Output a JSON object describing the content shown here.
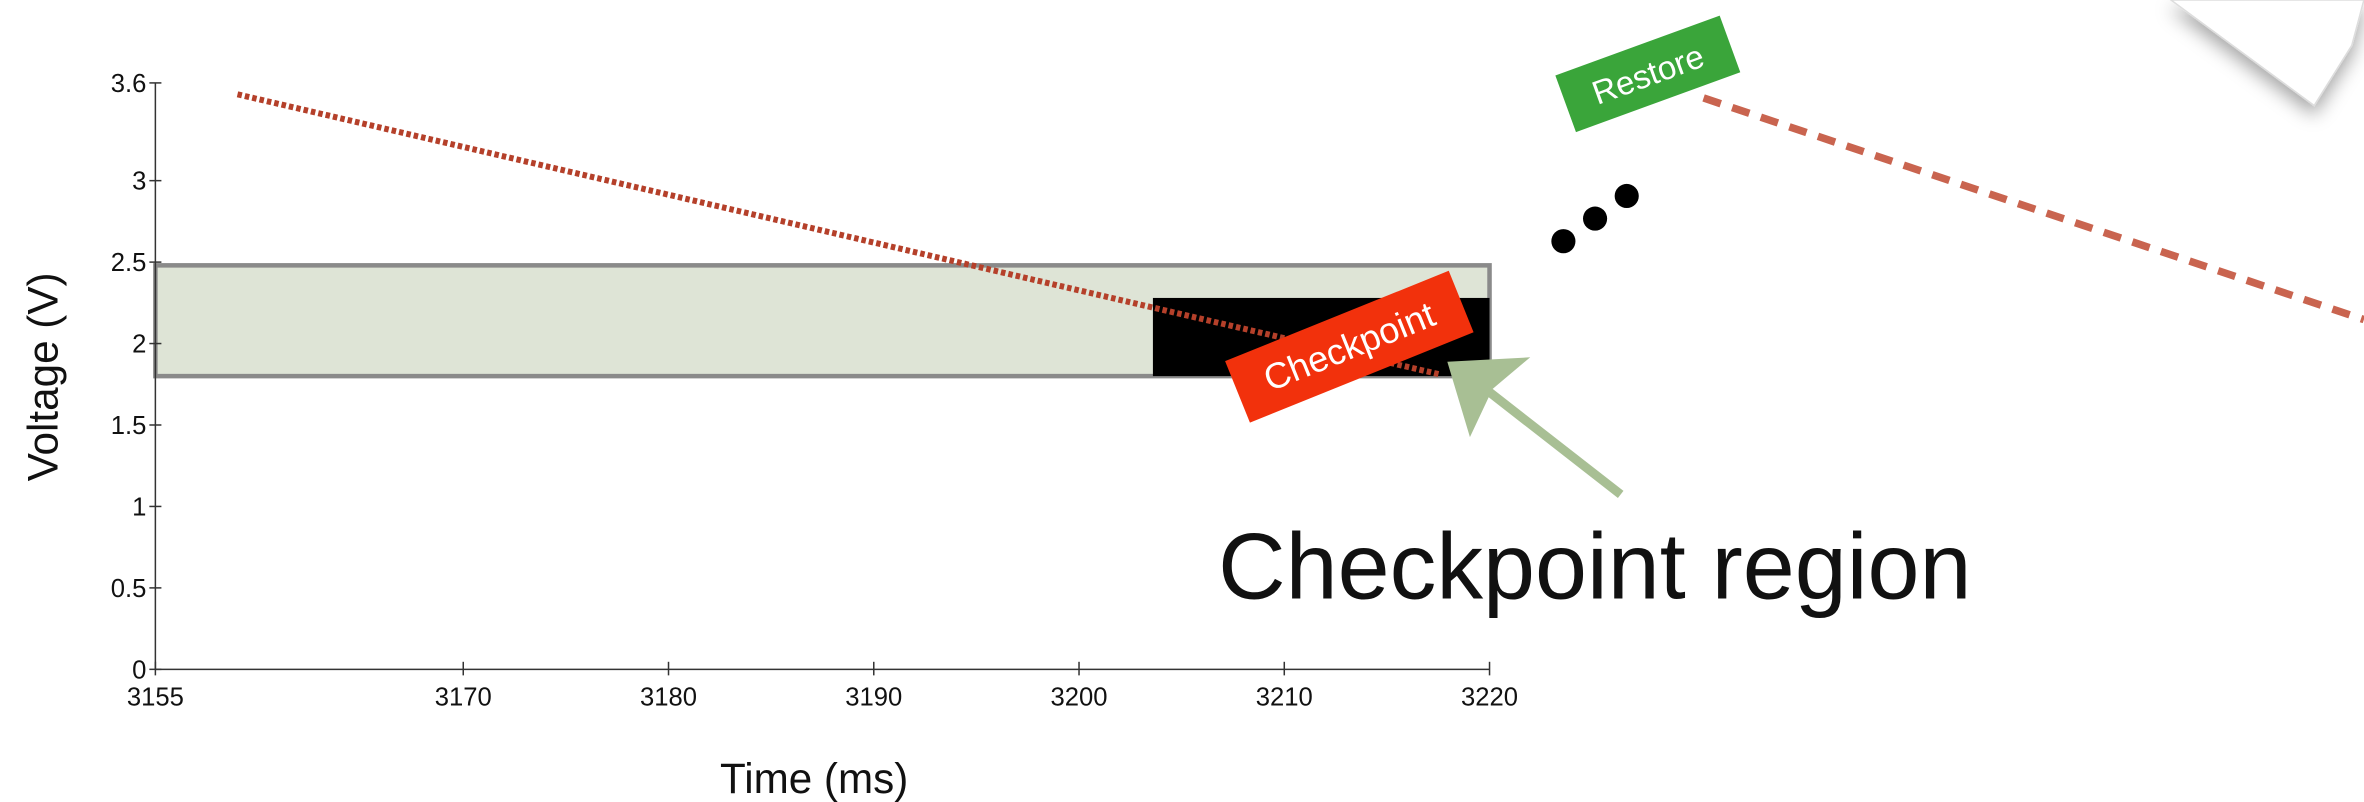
{
  "chart_data": {
    "type": "line",
    "xlabel": "Time (ms)",
    "ylabel": "Voltage (V)",
    "xlim": [
      3155,
      3220
    ],
    "ylim": [
      0,
      3.6
    ],
    "xticks": [
      3155,
      3170,
      3180,
      3190,
      3200,
      3210,
      3220
    ],
    "yticks": [
      0,
      0.5,
      1,
      1.5,
      2,
      2.5,
      3,
      3.6
    ],
    "series": [
      {
        "x": [
          3159,
          3217.6
        ],
        "values": [
          3.53,
          1.81
        ],
        "color": "#b5402a"
      }
    ],
    "regions": [
      {
        "x": [
          3155,
          3220
        ],
        "y": [
          1.8,
          2.48
        ],
        "color": "#dee4d6"
      },
      {
        "x": [
          3203.6,
          3220
        ],
        "y": [
          1.8,
          2.28
        ],
        "color": "#000000"
      }
    ],
    "annotations": {
      "checkpoint": "Checkpoint",
      "restore": "Restore",
      "region": "Checkpoint region"
    }
  }
}
